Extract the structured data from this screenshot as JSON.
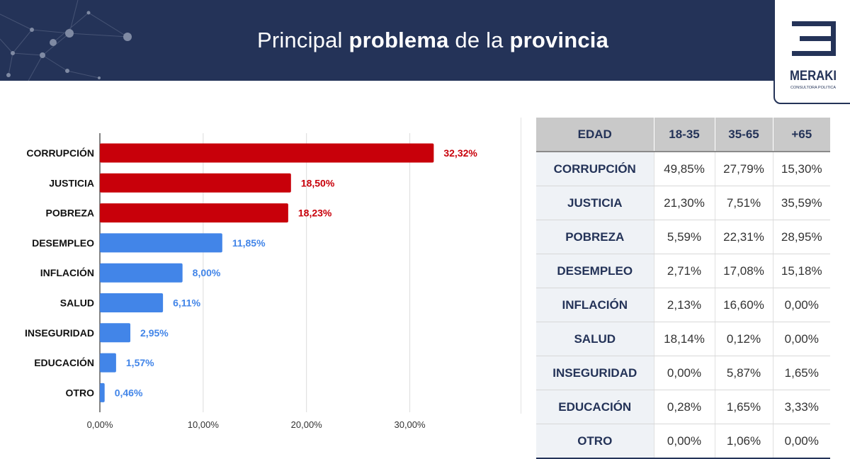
{
  "header": {
    "title_parts": [
      "Principal ",
      "problema",
      " de la ",
      "provincia"
    ],
    "bg_color": "#243358"
  },
  "logo": {
    "name": "MERAKI",
    "tagline": "CONSULTORA POLITICA"
  },
  "chart_data": {
    "type": "bar",
    "orientation": "horizontal",
    "categories": [
      "CORRUPCIÓN",
      "JUSTICIA",
      "POBREZA",
      "DESEMPLEO",
      "INFLACIÓN",
      "SALUD",
      "INSEGURIDAD",
      "EDUCACIÓN",
      "OTRO"
    ],
    "values": [
      32.32,
      18.5,
      18.23,
      11.85,
      8.0,
      6.11,
      2.95,
      1.57,
      0.46
    ],
    "value_labels": [
      "32,32%",
      "18,50%",
      "18,23%",
      "11,85%",
      "8,00%",
      "6,11%",
      "2,95%",
      "1,57%",
      "0,46%"
    ],
    "bar_colors": [
      "#c8000a",
      "#c8000a",
      "#c8000a",
      "#4285e8",
      "#4285e8",
      "#4285e8",
      "#4285e8",
      "#4285e8",
      "#4285e8"
    ],
    "x_ticks": [
      0,
      10,
      20,
      30
    ],
    "x_tick_labels": [
      "0,00%",
      "10,00%",
      "20,00%",
      "30,00%"
    ],
    "xlim": [
      0,
      34.9
    ],
    "grid": true,
    "legend": false
  },
  "table": {
    "headers": [
      "EDAD",
      "18-35",
      "35-65",
      "+65"
    ],
    "rows": [
      {
        "label": "CORRUPCIÓN",
        "values": [
          "49,85%",
          "27,79%",
          "15,30%"
        ]
      },
      {
        "label": "JUSTICIA",
        "values": [
          "21,30%",
          "7,51%",
          "35,59%"
        ]
      },
      {
        "label": "POBREZA",
        "values": [
          "5,59%",
          "22,31%",
          "28,95%"
        ]
      },
      {
        "label": "DESEMPLEO",
        "values": [
          "2,71%",
          "17,08%",
          "15,18%"
        ]
      },
      {
        "label": "INFLACIÓN",
        "values": [
          "2,13%",
          "16,60%",
          "0,00%"
        ]
      },
      {
        "label": "SALUD",
        "values": [
          "18,14%",
          "0,12%",
          "0,00%"
        ]
      },
      {
        "label": "INSEGURIDAD",
        "values": [
          "0,00%",
          "5,87%",
          "1,65%"
        ]
      },
      {
        "label": "EDUCACIÓN",
        "values": [
          "0,28%",
          "1,65%",
          "3,33%"
        ]
      },
      {
        "label": "OTRO",
        "values": [
          "0,00%",
          "1,06%",
          "0,00%"
        ]
      }
    ]
  }
}
